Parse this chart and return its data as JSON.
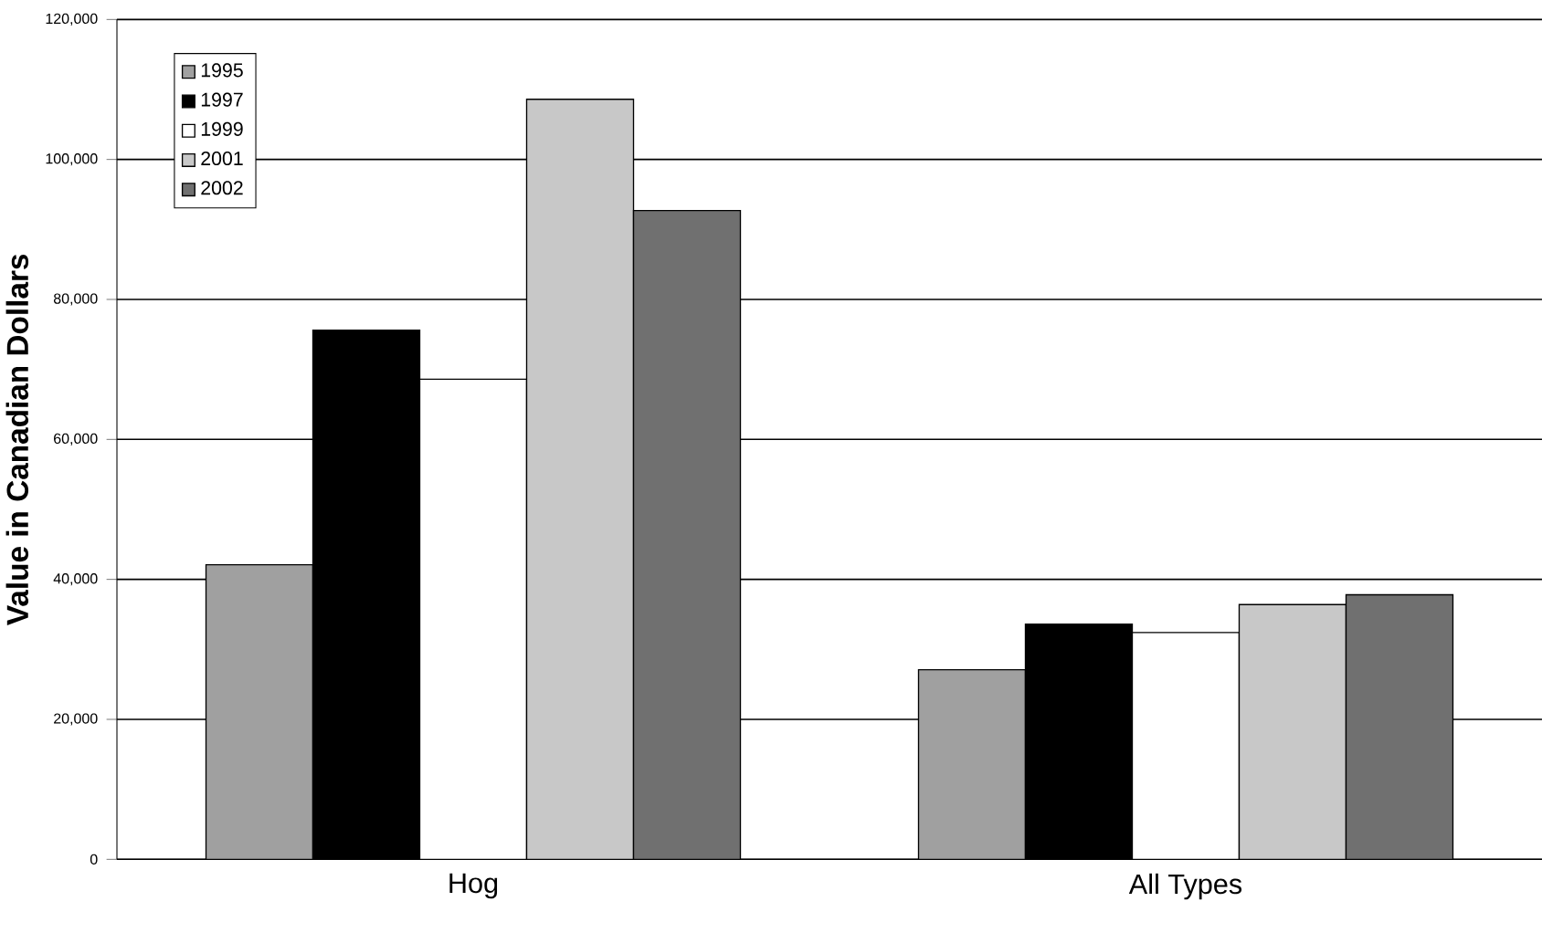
{
  "chart_data": {
    "type": "bar",
    "ylabel": "Value in Canadian Dollars",
    "categories": [
      "Hog",
      "All Types"
    ],
    "series": [
      {
        "name": "1995",
        "color": "#a0a0a0",
        "values": [
          42100,
          27100
        ]
      },
      {
        "name": "1997",
        "color": "#000000",
        "values": [
          75600,
          33600
        ]
      },
      {
        "name": "1999",
        "color": "#ffffff",
        "values": [
          68600,
          32400
        ]
      },
      {
        "name": "2001",
        "color": "#c8c8c8",
        "values": [
          108600,
          36400
        ]
      },
      {
        "name": "2002",
        "color": "#707070",
        "values": [
          92700,
          37800
        ]
      }
    ],
    "ylim": [
      0,
      120000
    ],
    "yticks": [
      0,
      {
        "value": 20000,
        "label": "20,000"
      },
      {
        "value": 40000,
        "label": "40,000"
      },
      {
        "value": 60000,
        "label": "60,000"
      },
      {
        "value": 80000,
        "label": "80,000"
      },
      {
        "value": 100000,
        "label": "100,000"
      },
      {
        "value": 120000,
        "label": "120,000"
      }
    ],
    "grid": "y",
    "legend": "top left"
  }
}
